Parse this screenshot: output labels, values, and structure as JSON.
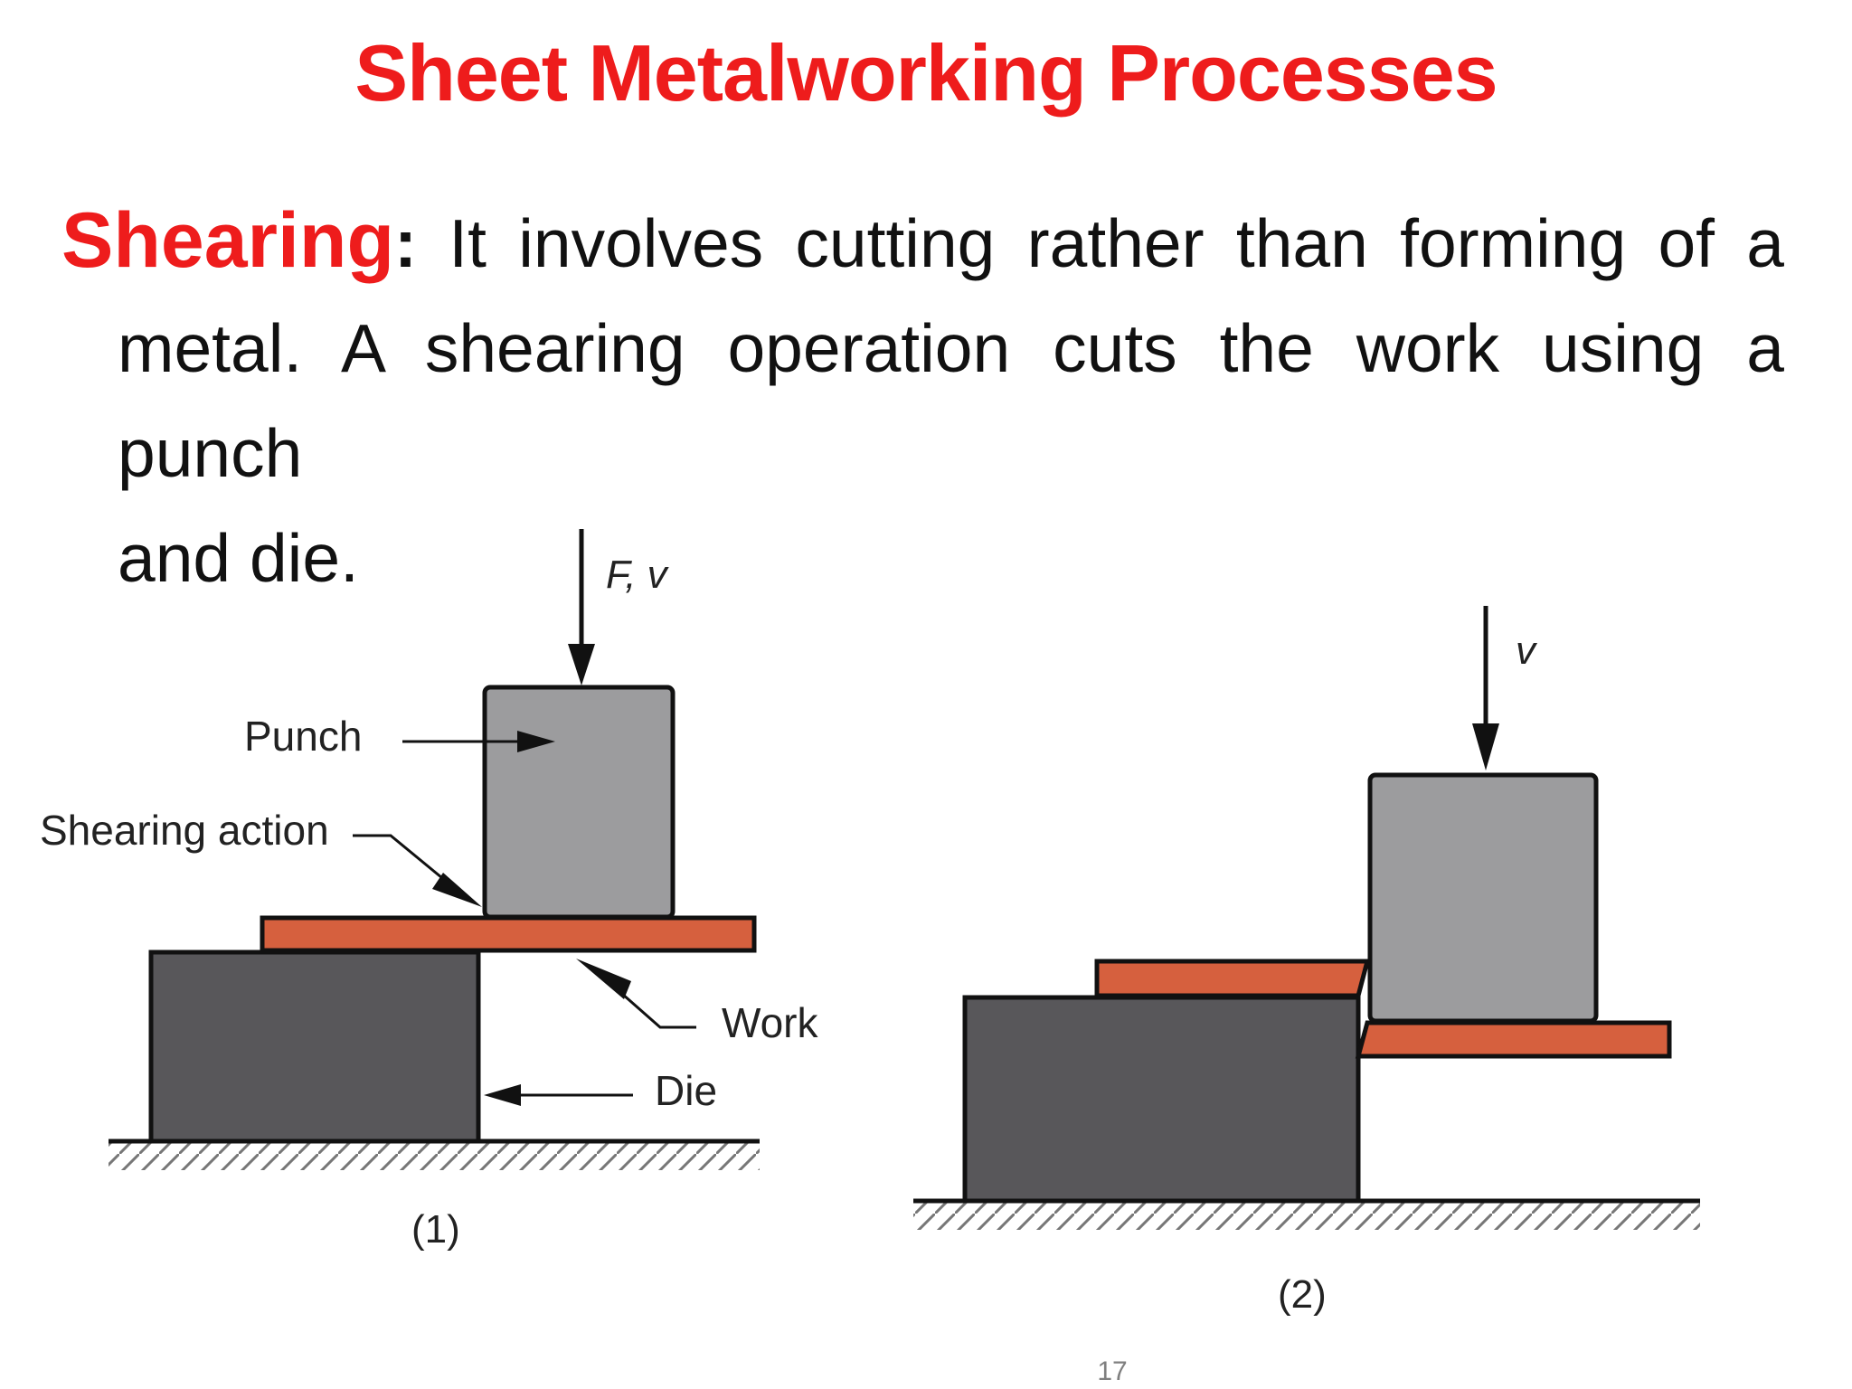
{
  "slide": {
    "title": "Sheet Metalworking Processes",
    "page_number": "17"
  },
  "paragraph": {
    "term": "Shearing",
    "colon": ":",
    "line1_rest": " It involves cutting rather than forming of a",
    "line2": "metal. A shearing operation cuts the work using a punch",
    "line3": "and die."
  },
  "figure": {
    "panel1": {
      "force_label": "F, v",
      "punch_label": "Punch",
      "shearing_action_label": "Shearing action",
      "work_label": "Work",
      "die_label": "Die",
      "caption": "(1)"
    },
    "panel2": {
      "velocity_label": "v",
      "caption": "(2)"
    }
  },
  "colors": {
    "title_red": "#ee1c1c",
    "punch_gray": "#9c9c9e",
    "die_dark": "#58575a",
    "work_orange": "#d6603e",
    "outline": "#111111"
  }
}
